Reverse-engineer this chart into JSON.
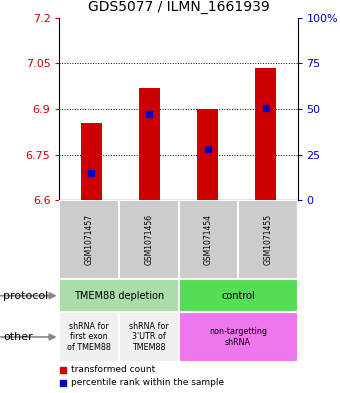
{
  "title": "GDS5077 / ILMN_1661939",
  "samples": [
    "GSM1071457",
    "GSM1071456",
    "GSM1071454",
    "GSM1071455"
  ],
  "bar_values": [
    6.855,
    6.97,
    6.9,
    7.035
  ],
  "bar_bottom": 6.6,
  "percentile_values": [
    6.69,
    6.885,
    6.77,
    6.905
  ],
  "ylim": [
    6.6,
    7.2
  ],
  "yticks_left": [
    6.6,
    6.75,
    6.9,
    7.05,
    7.2
  ],
  "yticks_right": [
    0,
    25,
    50,
    75,
    100
  ],
  "yticks_right_labels": [
    "0",
    "25",
    "50",
    "75",
    "100%"
  ],
  "hlines": [
    6.75,
    6.9,
    7.05
  ],
  "bar_color": "#cc0000",
  "marker_color": "#0000cc",
  "bar_width": 0.35,
  "protocol_row": [
    {
      "label": "TMEM88 depletion",
      "span": [
        0,
        2
      ],
      "color": "#aaddaa"
    },
    {
      "label": "control",
      "span": [
        2,
        4
      ],
      "color": "#55dd55"
    }
  ],
  "other_row": [
    {
      "label": "shRNA for\nfirst exon\nof TMEM88",
      "span": [
        0,
        1
      ],
      "color": "#f0f0f0"
    },
    {
      "label": "shRNA for\n3'UTR of\nTMEM88",
      "span": [
        1,
        2
      ],
      "color": "#f0f0f0"
    },
    {
      "label": "non-targetting\nshRNA",
      "span": [
        2,
        4
      ],
      "color": "#ee77ee"
    }
  ],
  "legend_items": [
    {
      "color": "#cc0000",
      "label": "transformed count"
    },
    {
      "color": "#0000cc",
      "label": "percentile rank within the sample"
    }
  ],
  "left_label_color": "#cc0000",
  "right_label_color": "#0000cc",
  "protocol_label": "protocol",
  "other_label": "other",
  "ylabel_fontsize": 8,
  "title_fontsize": 10
}
